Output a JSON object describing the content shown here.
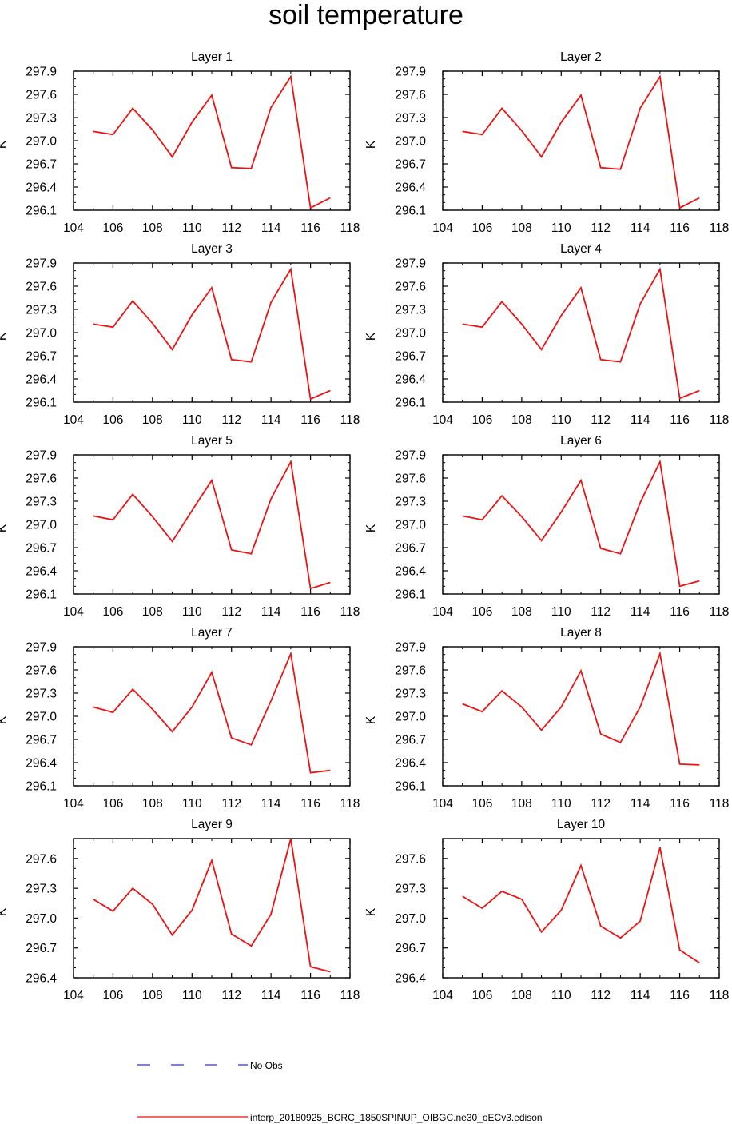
{
  "figure": {
    "title": "soil temperature",
    "legend": [
      {
        "label": "No Obs",
        "color": "#2b2bff",
        "style": "dashed"
      },
      {
        "label": "interp_20180925_BCRC_1850SPINUP_OIBGC.ne30_oECv3.edison",
        "color": "#ee1111",
        "style": "solid"
      }
    ]
  },
  "chart_data": [
    {
      "type": "line",
      "title": "Layer 1",
      "xlabel": "",
      "ylabel": "K",
      "xlim": [
        104,
        118
      ],
      "ylim": [
        296.1,
        297.9
      ],
      "xticks": [
        "104",
        "106",
        "108",
        "110",
        "112",
        "114",
        "116",
        "118"
      ],
      "yticks": [
        "296.1",
        "296.4",
        "296.7",
        "297.0",
        "297.3",
        "297.6",
        "297.9"
      ],
      "series": [
        {
          "name": "interp_20180925_BCRC_1850SPINUP_OIBGC.ne30_oECv3.edison",
          "x": [
            105,
            106,
            107,
            108,
            109,
            110,
            111,
            112,
            113,
            114,
            115,
            116,
            117
          ],
          "values": [
            297.12,
            297.08,
            297.42,
            297.14,
            296.79,
            297.24,
            297.59,
            296.65,
            296.64,
            297.43,
            297.83,
            296.13,
            296.26
          ]
        }
      ]
    },
    {
      "type": "line",
      "title": "Layer 2",
      "xlabel": "",
      "ylabel": "K",
      "xlim": [
        104,
        118
      ],
      "ylim": [
        296.1,
        297.9
      ],
      "xticks": [
        "104",
        "106",
        "108",
        "110",
        "112",
        "114",
        "116",
        "118"
      ],
      "yticks": [
        "296.1",
        "296.4",
        "296.7",
        "297.0",
        "297.3",
        "297.6",
        "297.9"
      ],
      "series": [
        {
          "name": "interp_20180925_BCRC_1850SPINUP_OIBGC.ne30_oECv3.edison",
          "x": [
            105,
            106,
            107,
            108,
            109,
            110,
            111,
            112,
            113,
            114,
            115,
            116,
            117
          ],
          "values": [
            297.12,
            297.08,
            297.42,
            297.13,
            296.79,
            297.24,
            297.59,
            296.65,
            296.63,
            297.42,
            297.83,
            296.13,
            296.26
          ]
        }
      ]
    },
    {
      "type": "line",
      "title": "Layer 3",
      "xlabel": "",
      "ylabel": "K",
      "xlim": [
        104,
        118
      ],
      "ylim": [
        296.1,
        297.9
      ],
      "xticks": [
        "104",
        "106",
        "108",
        "110",
        "112",
        "114",
        "116",
        "118"
      ],
      "yticks": [
        "296.1",
        "296.4",
        "296.7",
        "297.0",
        "297.3",
        "297.6",
        "297.9"
      ],
      "series": [
        {
          "name": "interp_20180925_BCRC_1850SPINUP_OIBGC.ne30_oECv3.edison",
          "x": [
            105,
            106,
            107,
            108,
            109,
            110,
            111,
            112,
            113,
            114,
            115,
            116,
            117
          ],
          "values": [
            297.11,
            297.07,
            297.41,
            297.12,
            296.78,
            297.23,
            297.58,
            296.65,
            296.62,
            297.39,
            297.82,
            296.14,
            296.25
          ]
        }
      ]
    },
    {
      "type": "line",
      "title": "Layer 4",
      "xlabel": "",
      "ylabel": "K",
      "xlim": [
        104,
        118
      ],
      "ylim": [
        296.1,
        297.9
      ],
      "xticks": [
        "104",
        "106",
        "108",
        "110",
        "112",
        "114",
        "116",
        "118"
      ],
      "yticks": [
        "296.1",
        "296.4",
        "296.7",
        "297.0",
        "297.3",
        "297.6",
        "297.9"
      ],
      "series": [
        {
          "name": "interp_20180925_BCRC_1850SPINUP_OIBGC.ne30_oECv3.edison",
          "x": [
            105,
            106,
            107,
            108,
            109,
            110,
            111,
            112,
            113,
            114,
            115,
            116,
            117
          ],
          "values": [
            297.11,
            297.07,
            297.4,
            297.11,
            296.78,
            297.22,
            297.58,
            296.65,
            296.62,
            297.37,
            297.82,
            296.15,
            296.25
          ]
        }
      ]
    },
    {
      "type": "line",
      "title": "Layer 5",
      "xlabel": "",
      "ylabel": "K",
      "xlim": [
        104,
        118
      ],
      "ylim": [
        296.1,
        297.9
      ],
      "xticks": [
        "104",
        "106",
        "108",
        "110",
        "112",
        "114",
        "116",
        "118"
      ],
      "yticks": [
        "296.1",
        "296.4",
        "296.7",
        "297.0",
        "297.3",
        "297.6",
        "297.9"
      ],
      "series": [
        {
          "name": "interp_20180925_BCRC_1850SPINUP_OIBGC.ne30_oECv3.edison",
          "x": [
            105,
            106,
            107,
            108,
            109,
            110,
            111,
            112,
            113,
            114,
            115,
            116,
            117
          ],
          "values": [
            297.11,
            297.06,
            297.39,
            297.1,
            296.78,
            297.18,
            297.57,
            296.67,
            296.62,
            297.33,
            297.81,
            296.17,
            296.25
          ]
        }
      ]
    },
    {
      "type": "line",
      "title": "Layer 6",
      "xlabel": "",
      "ylabel": "K",
      "xlim": [
        104,
        118
      ],
      "ylim": [
        296.1,
        297.9
      ],
      "xticks": [
        "104",
        "106",
        "108",
        "110",
        "112",
        "114",
        "116",
        "118"
      ],
      "yticks": [
        "296.1",
        "296.4",
        "296.7",
        "297.0",
        "297.3",
        "297.6",
        "297.9"
      ],
      "series": [
        {
          "name": "interp_20180925_BCRC_1850SPINUP_OIBGC.ne30_oECv3.edison",
          "x": [
            105,
            106,
            107,
            108,
            109,
            110,
            111,
            112,
            113,
            114,
            115,
            116,
            117
          ],
          "values": [
            297.11,
            297.06,
            297.37,
            297.1,
            296.79,
            297.16,
            297.57,
            296.69,
            296.62,
            297.28,
            297.81,
            296.2,
            296.27
          ]
        }
      ]
    },
    {
      "type": "line",
      "title": "Layer 7",
      "xlabel": "",
      "ylabel": "K",
      "xlim": [
        104,
        118
      ],
      "ylim": [
        296.1,
        297.9
      ],
      "xticks": [
        "104",
        "106",
        "108",
        "110",
        "112",
        "114",
        "116",
        "118"
      ],
      "yticks": [
        "296.1",
        "296.4",
        "296.7",
        "297.0",
        "297.3",
        "297.6",
        "297.9"
      ],
      "series": [
        {
          "name": "interp_20180925_BCRC_1850SPINUP_OIBGC.ne30_oECv3.edison",
          "x": [
            105,
            106,
            107,
            108,
            109,
            110,
            111,
            112,
            113,
            114,
            115,
            116,
            117
          ],
          "values": [
            297.12,
            297.05,
            297.35,
            297.09,
            296.8,
            297.12,
            297.57,
            296.72,
            296.63,
            297.2,
            297.81,
            296.27,
            296.3
          ]
        }
      ]
    },
    {
      "type": "line",
      "title": "Layer 8",
      "xlabel": "",
      "ylabel": "K",
      "xlim": [
        104,
        118
      ],
      "ylim": [
        296.1,
        297.9
      ],
      "xticks": [
        "104",
        "106",
        "108",
        "110",
        "112",
        "114",
        "116",
        "118"
      ],
      "yticks": [
        "296.1",
        "296.4",
        "296.7",
        "297.0",
        "297.3",
        "297.6",
        "297.9"
      ],
      "series": [
        {
          "name": "interp_20180925_BCRC_1850SPINUP_OIBGC.ne30_oECv3.edison",
          "x": [
            105,
            106,
            107,
            108,
            109,
            110,
            111,
            112,
            113,
            114,
            115,
            116,
            117
          ],
          "values": [
            297.16,
            297.06,
            297.33,
            297.12,
            296.82,
            297.12,
            297.59,
            296.77,
            296.66,
            297.12,
            297.81,
            296.38,
            296.37
          ]
        }
      ]
    },
    {
      "type": "line",
      "title": "Layer 9",
      "xlabel": "",
      "ylabel": "K",
      "xlim": [
        104,
        118
      ],
      "ylim": [
        296.4,
        297.8
      ],
      "xticks": [
        "104",
        "106",
        "108",
        "110",
        "112",
        "114",
        "116",
        "118"
      ],
      "yticks": [
        "296.4",
        "296.7",
        "297.0",
        "297.3",
        "297.6"
      ],
      "series": [
        {
          "name": "interp_20180925_BCRC_1850SPINUP_OIBGC.ne30_oECv3.edison",
          "x": [
            105,
            106,
            107,
            108,
            109,
            110,
            111,
            112,
            113,
            114,
            115,
            116,
            117
          ],
          "values": [
            297.19,
            297.07,
            297.3,
            297.14,
            296.83,
            297.08,
            297.58,
            296.84,
            296.72,
            297.04,
            297.8,
            296.51,
            296.46
          ]
        }
      ]
    },
    {
      "type": "line",
      "title": "Layer 10",
      "xlabel": "",
      "ylabel": "K",
      "xlim": [
        104,
        118
      ],
      "ylim": [
        296.4,
        297.8
      ],
      "xticks": [
        "104",
        "106",
        "108",
        "110",
        "112",
        "114",
        "116",
        "118"
      ],
      "yticks": [
        "296.4",
        "296.7",
        "297.0",
        "297.3",
        "297.6"
      ],
      "series": [
        {
          "name": "interp_20180925_BCRC_1850SPINUP_OIBGC.ne30_oECv3.edison",
          "x": [
            105,
            106,
            107,
            108,
            109,
            110,
            111,
            112,
            113,
            114,
            115,
            116,
            117
          ],
          "values": [
            297.22,
            297.1,
            297.27,
            297.19,
            296.86,
            297.08,
            297.53,
            296.92,
            296.8,
            296.97,
            297.71,
            296.68,
            296.55
          ]
        }
      ]
    }
  ]
}
